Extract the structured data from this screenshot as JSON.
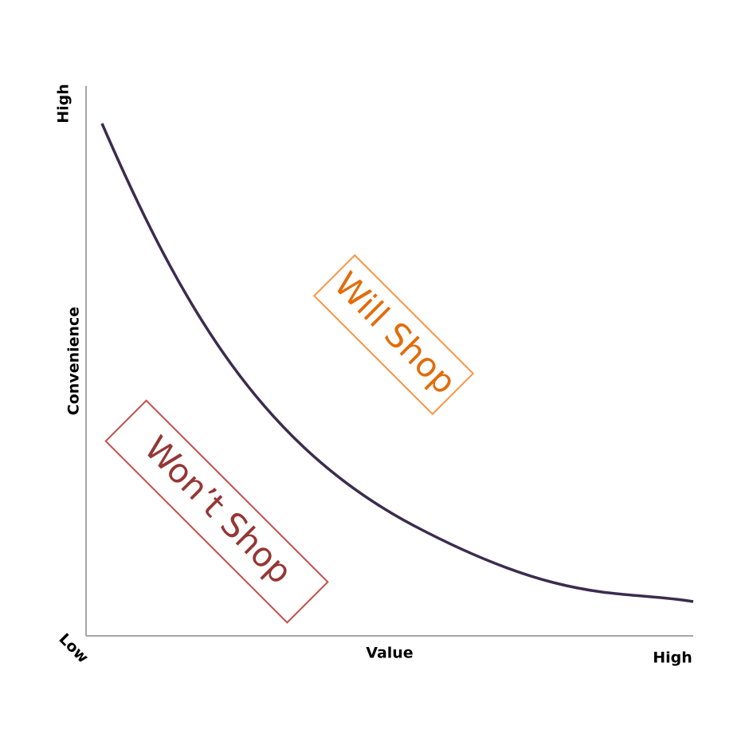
{
  "y_axis": {
    "high": "High",
    "label": "Convenience"
  },
  "x_axis": {
    "low": "Low",
    "label": "Value",
    "high": "High"
  },
  "regions": [
    {
      "label": "Will Shop"
    },
    {
      "label": "Won’t Shop"
    }
  ]
}
